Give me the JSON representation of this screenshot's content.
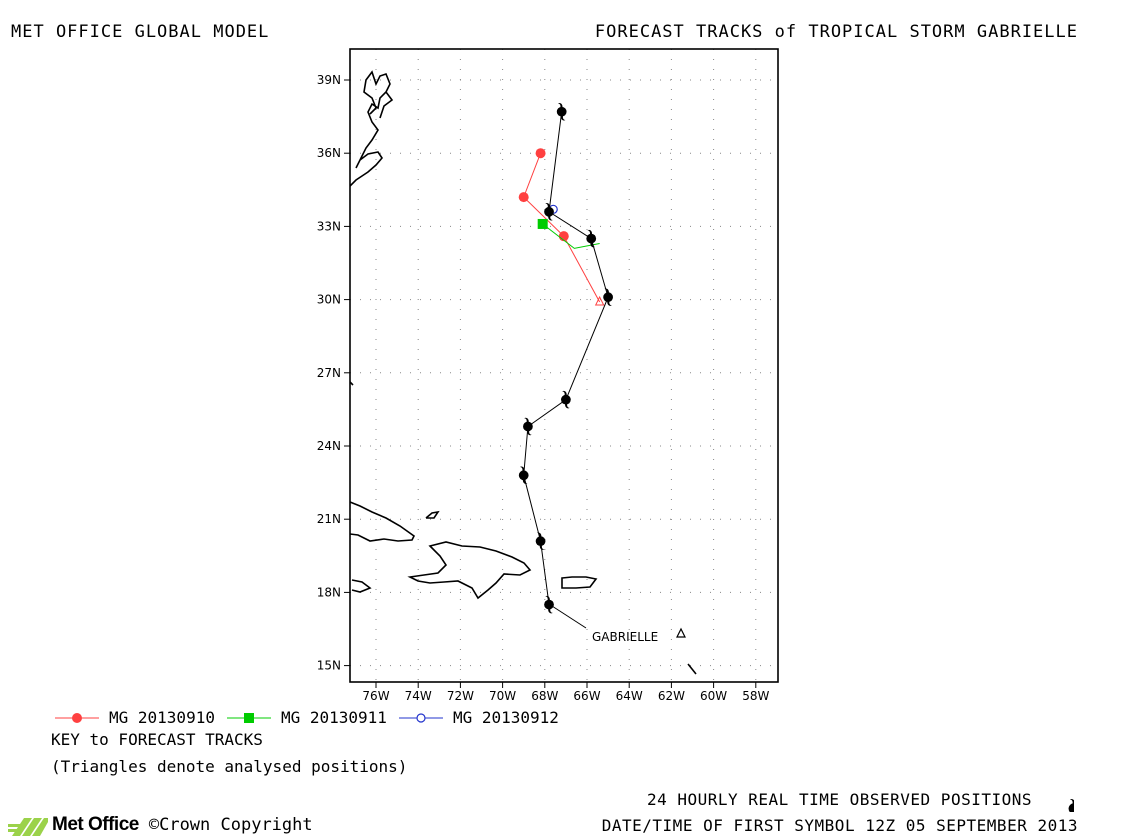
{
  "header": {
    "model": "MET OFFICE GLOBAL MODEL",
    "title": "FORECAST TRACKS of TROPICAL STORM GABRIELLE"
  },
  "map": {
    "lat_ticks": [
      {
        "lat": 39,
        "label": "39N"
      },
      {
        "lat": 36,
        "label": "36N"
      },
      {
        "lat": 33,
        "label": "33N"
      },
      {
        "lat": 30,
        "label": "30N"
      },
      {
        "lat": 27,
        "label": "27N"
      },
      {
        "lat": 24,
        "label": "24N"
      },
      {
        "lat": 21,
        "label": "21N"
      },
      {
        "lat": 18,
        "label": "18N"
      },
      {
        "lat": 15,
        "label": "15N"
      }
    ],
    "lon_ticks": [
      {
        "lon": -76,
        "label": "76W"
      },
      {
        "lon": -74,
        "label": "74W"
      },
      {
        "lon": -72,
        "label": "72W"
      },
      {
        "lon": -70,
        "label": "70W"
      },
      {
        "lon": -68,
        "label": "68W"
      },
      {
        "lon": -66,
        "label": "66W"
      },
      {
        "lon": -64,
        "label": "64W"
      },
      {
        "lon": -62,
        "label": "62W"
      },
      {
        "lon": -60,
        "label": "60W"
      },
      {
        "lon": -58,
        "label": "58W"
      }
    ],
    "storm_name": "GABRIELLE",
    "observed_track": [
      {
        "lon": -67.8,
        "lat": 17.5
      },
      {
        "lon": -68.2,
        "lat": 20.1
      },
      {
        "lon": -69.0,
        "lat": 22.8
      },
      {
        "lon": -68.8,
        "lat": 24.8
      },
      {
        "lon": -67.0,
        "lat": 25.9
      },
      {
        "lon": -65.0,
        "lat": 30.1
      },
      {
        "lon": -65.8,
        "lat": 32.5
      },
      {
        "lon": -67.8,
        "lat": 33.6
      },
      {
        "lon": -67.2,
        "lat": 37.7
      }
    ],
    "forecast_tracks": [
      {
        "name": "MG 20130910",
        "color": "#ff4040",
        "marker": "circle",
        "points": [
          {
            "lon": -65.4,
            "lat": 29.9
          },
          {
            "lon": -67.1,
            "lat": 32.6
          },
          {
            "lon": -69.0,
            "lat": 34.2
          },
          {
            "lon": -68.2,
            "lat": 36.0
          }
        ]
      },
      {
        "name": "MG 20130911",
        "color": "#00cc00",
        "marker": "square",
        "points": [
          {
            "lon": -65.4,
            "lat": 32.3
          },
          {
            "lon": -66.6,
            "lat": 32.1
          },
          {
            "lon": -68.1,
            "lat": 33.1
          }
        ]
      },
      {
        "name": "MG 20130912",
        "color": "#2233cc",
        "marker": "open-circle",
        "points": [
          {
            "lon": -67.8,
            "lat": 33.5
          },
          {
            "lon": -67.6,
            "lat": 33.7
          }
        ]
      }
    ]
  },
  "legend": {
    "key_title": "KEY to FORECAST TRACKS",
    "triangle_note": "(Triangles denote analysed positions)"
  },
  "footer": {
    "brand": "Met Office",
    "copyright": "©Crown Copyright",
    "observed_note": "24 HOURLY REAL TIME OBSERVED POSITIONS",
    "first_symbol": "DATE/TIME OF FIRST SYMBOL 12Z 05 SEPTEMBER 2013"
  }
}
